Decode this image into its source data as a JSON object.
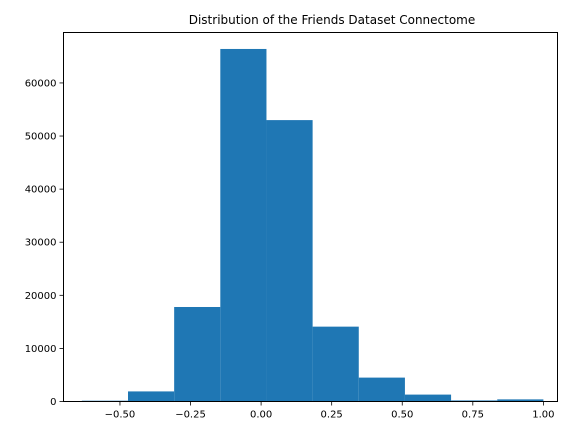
{
  "chart_data": {
    "type": "histogram",
    "title": "Distribution of the Friends Dataset Connectome",
    "xlabel": "",
    "ylabel": "",
    "xlim": [
      -0.7,
      1.05
    ],
    "ylim": [
      0,
      69500
    ],
    "bin_edges": [
      -0.635,
      -0.4715,
      -0.308,
      -0.1445,
      0.019,
      0.1825,
      0.346,
      0.5095,
      0.673,
      0.8365,
      1.0
    ],
    "counts": [
      150,
      1900,
      17800,
      66400,
      53000,
      14100,
      4500,
      1300,
      200,
      400
    ],
    "x_ticks": [
      -0.5,
      -0.25,
      0.0,
      0.25,
      0.5,
      0.75,
      1.0
    ],
    "x_tick_labels": [
      "−0.50",
      "−0.25",
      "0.00",
      "0.25",
      "0.50",
      "0.75",
      "1.00"
    ],
    "y_ticks": [
      0,
      10000,
      20000,
      30000,
      40000,
      50000,
      60000
    ],
    "y_tick_labels": [
      "0",
      "10000",
      "20000",
      "30000",
      "40000",
      "50000",
      "60000"
    ],
    "bar_color": "#1f77b4",
    "grid": false
  }
}
